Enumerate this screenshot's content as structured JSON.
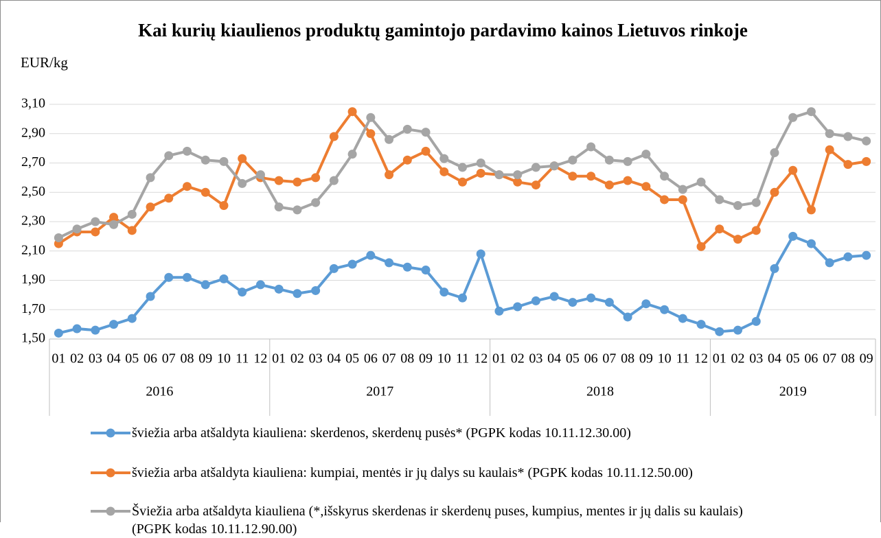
{
  "chart_data": {
    "type": "line",
    "title": "Kai kurių kiaulienos produktų gamintojo pardavimo kainos Lietuvos rinkoje",
    "y_label": "EUR/kg",
    "categories": [
      "01",
      "02",
      "03",
      "04",
      "05",
      "06",
      "07",
      "08",
      "09",
      "10",
      "11",
      "12",
      "01",
      "02",
      "03",
      "04",
      "05",
      "06",
      "07",
      "08",
      "09",
      "10",
      "11",
      "12",
      "01",
      "02",
      "03",
      "04",
      "05",
      "06",
      "07",
      "08",
      "09",
      "10",
      "11",
      "12",
      "01",
      "02",
      "03",
      "04",
      "05",
      "06",
      "07",
      "08",
      "09"
    ],
    "years": [
      "2016",
      "2017",
      "2018",
      "2019"
    ],
    "ylim": [
      1.5,
      3.1
    ],
    "yticks": [
      {
        "value": 1.5,
        "label": "1,50"
      },
      {
        "value": 1.7,
        "label": "1,70"
      },
      {
        "value": 1.9,
        "label": "1,90"
      },
      {
        "value": 2.1,
        "label": "2,10"
      },
      {
        "value": 2.3,
        "label": "2,30"
      },
      {
        "value": 2.5,
        "label": "2,50"
      },
      {
        "value": 2.7,
        "label": "2,70"
      },
      {
        "value": 2.9,
        "label": "2,90"
      },
      {
        "value": 3.1,
        "label": "3,10"
      }
    ],
    "grid": true,
    "series": [
      {
        "name": "šviežia arba atšaldyta kiauliena: skerdenos, skerdenų pusės* (PGPK kodas 10.11.12.30.00)",
        "color": "#5b9bd5",
        "values": [
          1.54,
          1.57,
          1.56,
          1.6,
          1.64,
          1.79,
          1.92,
          1.92,
          1.87,
          1.91,
          1.82,
          1.87,
          1.84,
          1.81,
          1.83,
          1.98,
          2.01,
          2.07,
          2.02,
          1.99,
          1.97,
          1.82,
          1.78,
          2.08,
          1.69,
          1.72,
          1.76,
          1.79,
          1.75,
          1.78,
          1.75,
          1.65,
          1.74,
          1.7,
          1.64,
          1.6,
          1.55,
          1.56,
          1.62,
          1.98,
          2.2,
          2.15,
          2.02,
          2.06,
          2.07
        ]
      },
      {
        "name": "šviežia arba atšaldyta kiauliena: kumpiai, mentės ir jų dalys su kaulais* (PGPK kodas 10.11.12.50.00)",
        "color": "#ed7d31",
        "values": [
          2.15,
          2.23,
          2.23,
          2.33,
          2.24,
          2.4,
          2.46,
          2.54,
          2.5,
          2.41,
          2.73,
          2.6,
          2.58,
          2.57,
          2.6,
          2.88,
          3.05,
          2.9,
          2.62,
          2.72,
          2.78,
          2.64,
          2.57,
          2.63,
          2.62,
          2.57,
          2.55,
          2.68,
          2.61,
          2.61,
          2.55,
          2.58,
          2.54,
          2.45,
          2.45,
          2.13,
          2.25,
          2.18,
          2.24,
          2.5,
          2.65,
          2.38,
          2.79,
          2.69,
          2.71
        ]
      },
      {
        "name": "Šviežia arba atšaldyta kiauliena (*,išskyrus skerdenas ir skerdenų puses, kumpius, mentes ir jų dalis su kaulais)  (PGPK kodas 10.11.12.90.00)",
        "color": "#a5a5a5",
        "values": [
          2.19,
          2.25,
          2.3,
          2.28,
          2.35,
          2.6,
          2.75,
          2.78,
          2.72,
          2.71,
          2.56,
          2.62,
          2.4,
          2.38,
          2.43,
          2.58,
          2.76,
          3.01,
          2.86,
          2.93,
          2.91,
          2.73,
          2.67,
          2.7,
          2.62,
          2.62,
          2.67,
          2.68,
          2.72,
          2.81,
          2.72,
          2.71,
          2.76,
          2.61,
          2.52,
          2.57,
          2.45,
          2.41,
          2.43,
          2.77,
          3.01,
          3.05,
          2.9,
          2.88,
          2.85
        ]
      }
    ]
  }
}
